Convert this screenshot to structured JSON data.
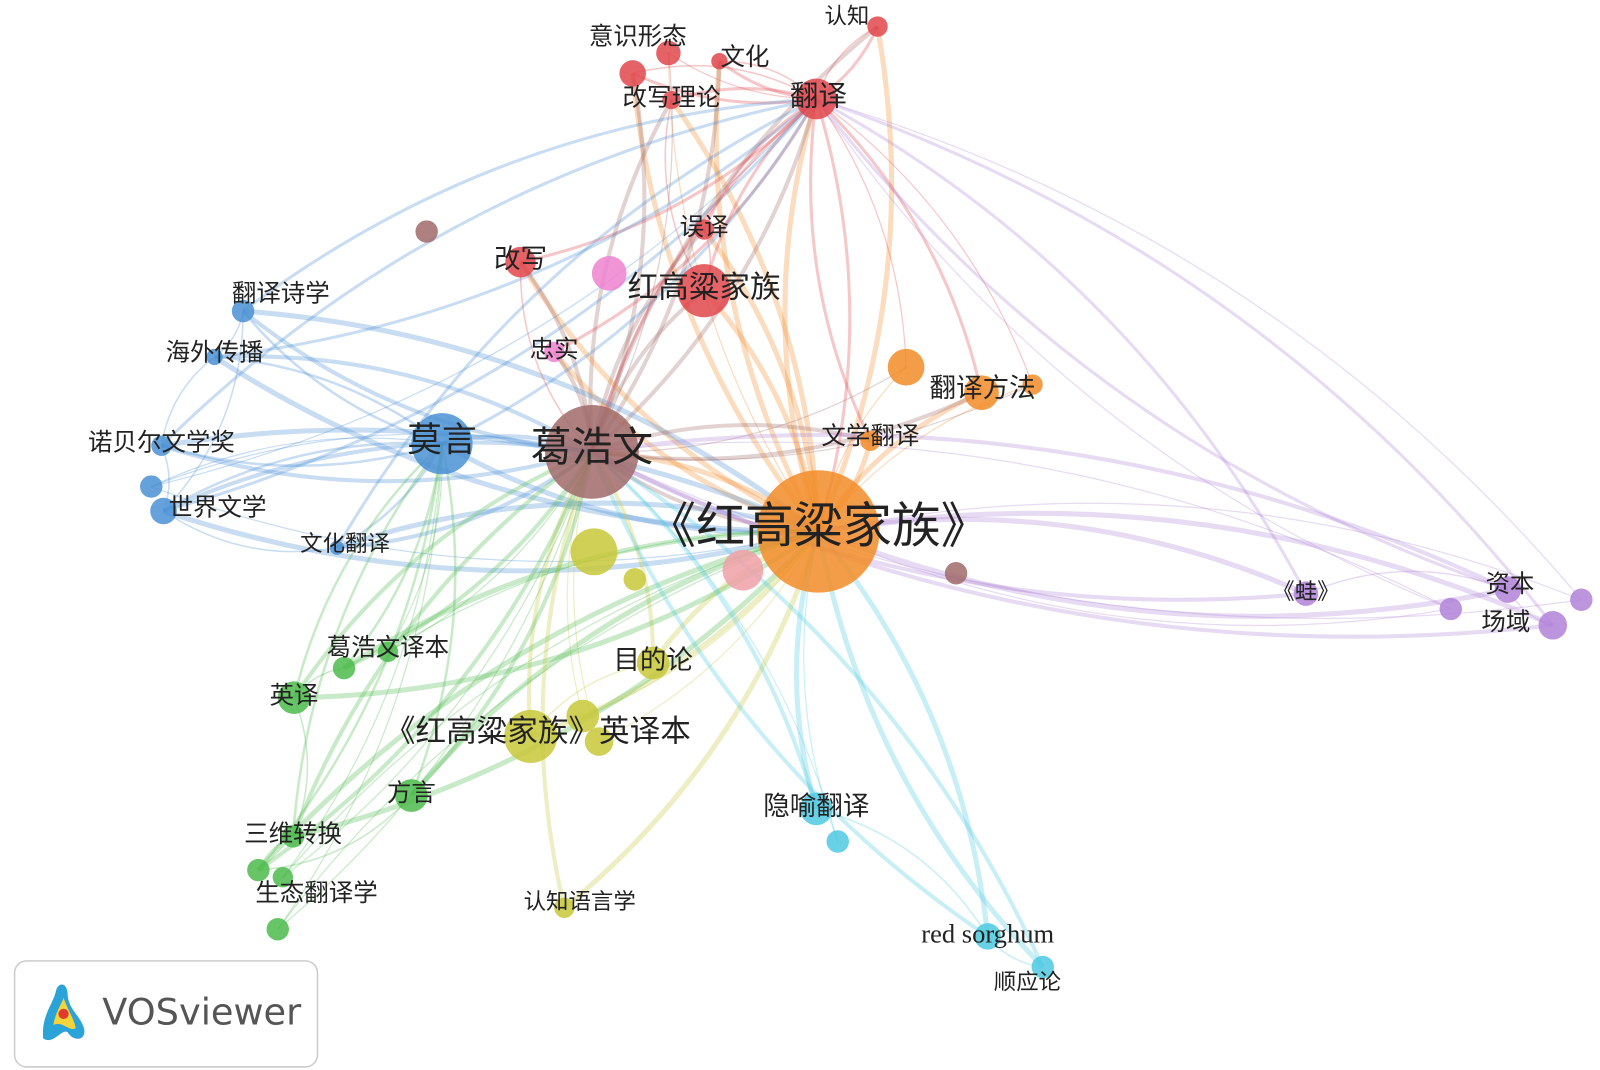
{
  "nodes": [
    {
      "label": "意识形态"
    },
    {
      "label": "认知"
    },
    {
      "label": "文化"
    },
    {
      "label": "改写理论"
    },
    {
      "label": "翻译"
    },
    {
      "label": "误译"
    },
    {
      "label": "改写"
    },
    {
      "label": "红高粱家族"
    },
    {
      "label": "忠实"
    },
    {
      "label": "翻译诗学"
    },
    {
      "label": "海外传播"
    },
    {
      "label": "诺贝尔文学奖"
    },
    {
      "label": "世界文学"
    },
    {
      "label": "文化翻译"
    },
    {
      "label": "莫言"
    },
    {
      "label": "葛浩文"
    },
    {
      "label": "翻译方法"
    },
    {
      "label": "文学翻译"
    },
    {
      "label": "《红高粱家族》"
    },
    {
      "label": "目的论"
    },
    {
      "label": "《红高粱家族》英译本"
    },
    {
      "label": "葛浩文译本"
    },
    {
      "label": "英译"
    },
    {
      "label": "方言"
    },
    {
      "label": "三维转换"
    },
    {
      "label": "生态翻译学"
    },
    {
      "label": "认知语言学"
    },
    {
      "label": "隐喻翻译"
    },
    {
      "label": "red sorghum"
    },
    {
      "label": "顺应论"
    },
    {
      "label": "《蛙》"
    },
    {
      "label": "资本"
    },
    {
      "label": "场域"
    }
  ],
  "logo": "VOSviewer"
}
